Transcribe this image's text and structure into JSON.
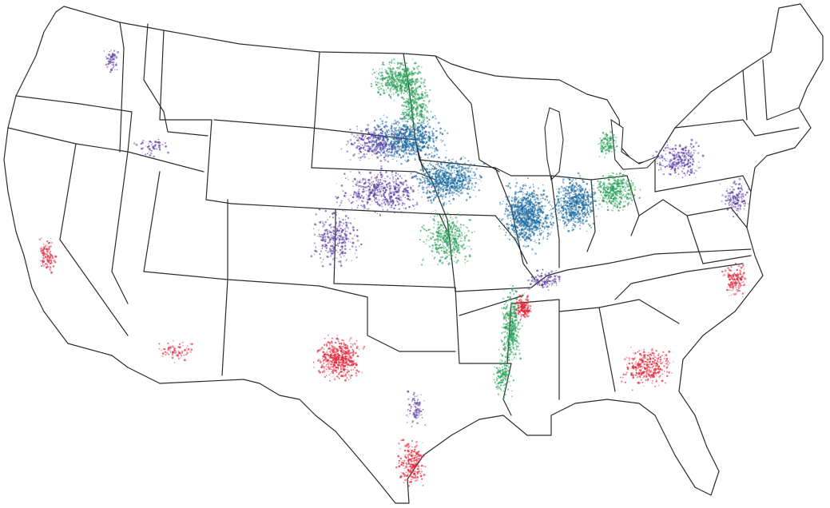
{
  "map": {
    "region": "contiguous-united-states",
    "boundaries": "state-outlines",
    "background_color": "#ffffff",
    "outline_color": "#2b2b2b",
    "categories": [
      {
        "key": "purple",
        "color": "#5b3fa6"
      },
      {
        "key": "teal",
        "color": "#1a6aa0"
      },
      {
        "key": "green",
        "color": "#2aa05a"
      },
      {
        "key": "red",
        "color": "#e0243a"
      }
    ]
  }
}
